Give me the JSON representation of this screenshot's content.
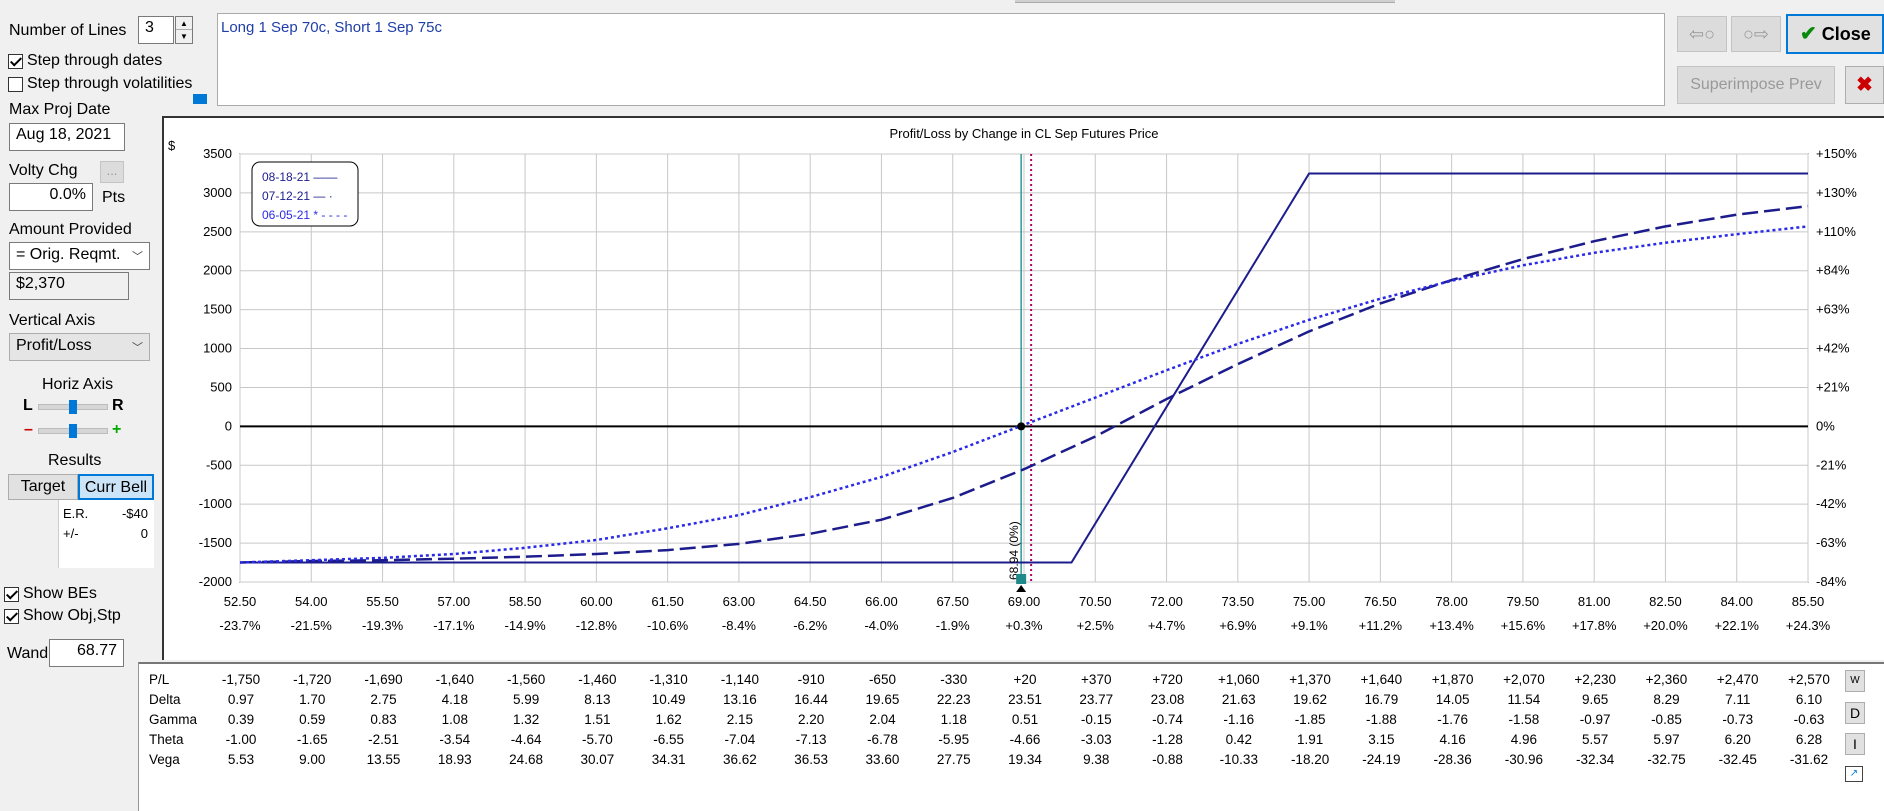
{
  "left_panel": {
    "num_lines_label": "Number of Lines",
    "num_lines_value": "3",
    "step_dates_label": "Step through dates",
    "step_dates_checked": true,
    "step_vols_label": "Step through volatilities",
    "step_vols_checked": false,
    "max_proj_date_label": "Max Proj Date",
    "max_proj_date_value": "Aug 18, 2021",
    "volty_chg_label": "Volty Chg",
    "volty_more_label": "...",
    "volty_chg_value": "0.0%",
    "volty_units": "Pts",
    "amount_provided_label": "Amount Provided",
    "amount_provided_select": "= Orig. Reqmt.",
    "amount_value": "$2,370",
    "vertical_axis_label": "Vertical Axis",
    "vertical_axis_select": "Profit/Loss",
    "horiz_axis_label": "Horiz Axis",
    "horiz_left": "L",
    "horiz_right": "R",
    "horiz_minus": "–",
    "horiz_plus": "+",
    "results_label": "Results",
    "target_tab": "Target",
    "curr_bell_tab": "Curr Bell",
    "er_label": "E.R.",
    "er_value": "-$40",
    "pm_label": "+/-",
    "pm_value": "0",
    "show_bes_label": "Show BEs",
    "show_bes_checked": true,
    "show_obj_label": "Show Obj,Stp",
    "show_obj_checked": true,
    "wand_label": "Wand",
    "wand_value": "68.77"
  },
  "top": {
    "description": "Long 1 Sep 70c, Short 1 Sep 75c",
    "back_arrow": "⇦○",
    "fwd_arrow": "○⇨",
    "close_label": "Close",
    "superimpose_label": "Superimpose Prev",
    "close_x": "✖"
  },
  "chart_data": {
    "type": "line",
    "title": "Profit/Loss by Change in CL Sep Futures Price",
    "y_unit_label": "$",
    "ylim": [
      -2000,
      3500
    ],
    "xlim": [
      52.5,
      85.5
    ],
    "x_ticks": [
      "52.50",
      "54.00",
      "55.50",
      "57.00",
      "58.50",
      "60.00",
      "61.50",
      "63.00",
      "64.50",
      "66.00",
      "67.50",
      "69.00",
      "70.50",
      "72.00",
      "73.50",
      "75.00",
      "76.50",
      "78.00",
      "79.50",
      "81.00",
      "82.50",
      "84.00",
      "85.50"
    ],
    "x_pct_ticks": [
      "-23.7%",
      "-21.5%",
      "-19.3%",
      "-17.1%",
      "-14.9%",
      "-12.8%",
      "-10.6%",
      "-8.4%",
      "-6.2%",
      "-4.0%",
      "-1.9%",
      "+0.3%",
      "+2.5%",
      "+4.7%",
      "+6.9%",
      "+9.1%",
      "+11.2%",
      "+13.4%",
      "+15.6%",
      "+17.8%",
      "+20.0%",
      "+22.1%",
      "+24.3%"
    ],
    "y_ticks": [
      "3500",
      "3000",
      "2500",
      "2000",
      "1500",
      "1000",
      "500",
      "0",
      "-500",
      "-1000",
      "-1500",
      "-2000"
    ],
    "y_pct_ticks": [
      {
        "v": 3000,
        "label": "+130%"
      },
      {
        "v": 3500,
        "label": "+150%"
      },
      {
        "v": 2500,
        "label": "+110%"
      },
      {
        "v": 2000,
        "label": "+84%"
      },
      {
        "v": 1500,
        "label": "+63%"
      },
      {
        "v": 1000,
        "label": "+42%"
      },
      {
        "v": 500,
        "label": "+21%"
      },
      {
        "v": 0,
        "label": "0%"
      },
      {
        "v": -500,
        "label": "-21%"
      },
      {
        "v": -1000,
        "label": "-42%"
      },
      {
        "v": -1500,
        "label": "-63%"
      },
      {
        "v": -2000,
        "label": "-84%"
      }
    ],
    "legend": [
      "08-18-21 ——",
      "07-12-21 — ·",
      "06-05-21 * - - - -"
    ],
    "current_price_label": "68.94 (0%)",
    "current_price": 68.94,
    "wand_x": 69.15,
    "grid": true,
    "series": [
      {
        "name": "08-18-21",
        "style": "solid",
        "color": "#1c1c8c",
        "x": [
          52.5,
          70.0,
          75.0,
          85.5
        ],
        "y": [
          -1750,
          -1750,
          3250,
          3250
        ]
      },
      {
        "name": "07-12-21",
        "style": "dashed",
        "color": "#1c1c8c",
        "x": [
          52.5,
          54,
          55.5,
          57,
          58.5,
          60,
          61.5,
          63,
          64.5,
          66,
          67.5,
          69,
          70.5,
          72,
          73.5,
          75,
          76.5,
          78,
          79.5,
          81,
          82.5,
          84,
          85.5
        ],
        "y": [
          -1750,
          -1730,
          -1720,
          -1700,
          -1675,
          -1640,
          -1590,
          -1510,
          -1380,
          -1200,
          -920,
          -550,
          -130,
          350,
          800,
          1220,
          1580,
          1880,
          2150,
          2380,
          2570,
          2720,
          2830
        ]
      },
      {
        "name": "06-05-21",
        "style": "dotted",
        "color": "#2a2ae8",
        "x": [
          52.5,
          54,
          55.5,
          57,
          58.5,
          60,
          61.5,
          63,
          64.5,
          66,
          67.5,
          69,
          70.5,
          72,
          73.5,
          75,
          76.5,
          78,
          79.5,
          81,
          82.5,
          84,
          85.5
        ],
        "y": [
          -1750,
          -1720,
          -1690,
          -1640,
          -1560,
          -1460,
          -1310,
          -1140,
          -910,
          -650,
          -330,
          20,
          370,
          720,
          1060,
          1370,
          1640,
          1870,
          2070,
          2230,
          2360,
          2470,
          2570
        ]
      }
    ]
  },
  "table": {
    "rows": [
      {
        "label": "P/L",
        "values": [
          "-1,750",
          "-1,720",
          "-1,690",
          "-1,640",
          "-1,560",
          "-1,460",
          "-1,310",
          "-1,140",
          "-910",
          "-650",
          "-330",
          "+20",
          "+370",
          "+720",
          "+1,060",
          "+1,370",
          "+1,640",
          "+1,870",
          "+2,070",
          "+2,230",
          "+2,360",
          "+2,470",
          "+2,570"
        ]
      },
      {
        "label": "Delta",
        "values": [
          "0.97",
          "1.70",
          "2.75",
          "4.18",
          "5.99",
          "8.13",
          "10.49",
          "13.16",
          "16.44",
          "19.65",
          "22.23",
          "23.51",
          "23.77",
          "23.08",
          "21.63",
          "19.62",
          "16.79",
          "14.05",
          "11.54",
          "9.65",
          "8.29",
          "7.11",
          "6.10"
        ]
      },
      {
        "label": "Gamma",
        "values": [
          "0.39",
          "0.59",
          "0.83",
          "1.08",
          "1.32",
          "1.51",
          "1.62",
          "2.15",
          "2.20",
          "2.04",
          "1.18",
          "0.51",
          "-0.15",
          "-0.74",
          "-1.16",
          "-1.85",
          "-1.88",
          "-1.76",
          "-1.58",
          "-0.97",
          "-0.85",
          "-0.73",
          "-0.63"
        ]
      },
      {
        "label": "Theta",
        "values": [
          "-1.00",
          "-1.65",
          "-2.51",
          "-3.54",
          "-4.64",
          "-5.70",
          "-6.55",
          "-7.04",
          "-7.13",
          "-6.78",
          "-5.95",
          "-4.66",
          "-3.03",
          "-1.28",
          "0.42",
          "1.91",
          "3.15",
          "4.16",
          "4.96",
          "5.57",
          "5.97",
          "6.20",
          "6.28"
        ]
      },
      {
        "label": "Vega",
        "values": [
          "5.53",
          "9.00",
          "13.55",
          "18.93",
          "24.68",
          "30.07",
          "34.31",
          "36.62",
          "36.53",
          "33.60",
          "27.75",
          "19.34",
          "9.38",
          "-0.88",
          "-10.33",
          "-18.20",
          "-24.19",
          "-28.36",
          "-30.96",
          "-32.34",
          "-32.75",
          "-32.45",
          "-31.62"
        ]
      }
    ],
    "side_buttons": [
      "W",
      "D",
      "I"
    ]
  }
}
